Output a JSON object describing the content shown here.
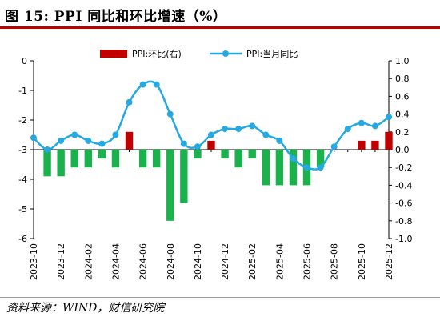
{
  "header": {
    "title": "图 15:  PPI 同比和环比增速（%）"
  },
  "footer": {
    "source": "资料来源：WIND，财信研究院"
  },
  "chart_data": {
    "type": "bar+line",
    "title": "PPI 同比和环比增速（%）",
    "x_tick_labels": [
      "2023-10",
      "2023-12",
      "2024-02",
      "2024-04",
      "2024-06",
      "2024-08",
      "2024-10",
      "2024-12",
      "2025-02",
      "2025-04",
      "2025-06",
      "2025-08",
      "2025-10",
      "2025-12"
    ],
    "x": [
      "2023-10",
      "2023-11",
      "2023-12",
      "2024-01",
      "2024-02",
      "2024-03",
      "2024-04",
      "2024-05",
      "2024-06",
      "2024-07",
      "2024-08",
      "2024-09",
      "2024-10",
      "2024-11",
      "2024-12",
      "2025-01",
      "2025-02",
      "2025-03",
      "2025-04",
      "2025-05",
      "2025-06",
      "2025-07",
      "2025-08",
      "2025-09",
      "2025-10",
      "2025-11",
      "2025-12"
    ],
    "left_axis": {
      "min": -6,
      "max": 0,
      "ticks": [
        0,
        -1,
        -2,
        -3,
        -4,
        -5,
        -6
      ]
    },
    "right_axis": {
      "min": -1.0,
      "max": 1.0,
      "ticks": [
        "1.0",
        "0.8",
        "0.6",
        "0.4",
        "0.2",
        "0.0",
        "-0.2",
        "-0.4",
        "-0.6",
        "-0.8",
        "-1.0"
      ]
    },
    "grid": false,
    "legend_position": "top",
    "series": [
      {
        "name": "PPI:环比(右)",
        "type": "bar",
        "axis": "right",
        "color_positive": "#c00000",
        "color_negative": "#1bb14c",
        "values": [
          0.0,
          -0.3,
          -0.3,
          -0.2,
          -0.2,
          -0.1,
          -0.2,
          0.2,
          -0.2,
          -0.2,
          -0.8,
          -0.6,
          -0.1,
          0.1,
          -0.1,
          -0.2,
          -0.1,
          -0.4,
          -0.4,
          -0.4,
          -0.4,
          -0.2,
          0.0,
          0.0,
          0.1,
          0.1,
          0.2
        ]
      },
      {
        "name": "PPI:当月同比",
        "type": "line",
        "axis": "left",
        "color": "#26a9e0",
        "values": [
          -2.6,
          -3.0,
          -2.7,
          -2.5,
          -2.7,
          -2.8,
          -2.5,
          -1.4,
          -0.8,
          -0.8,
          -1.8,
          -2.8,
          -2.9,
          -2.5,
          -2.3,
          -2.3,
          -2.2,
          -2.5,
          -2.7,
          -3.3,
          -3.6,
          -3.6,
          -2.9,
          -2.3,
          -2.1,
          -2.2,
          -1.9
        ]
      }
    ]
  }
}
